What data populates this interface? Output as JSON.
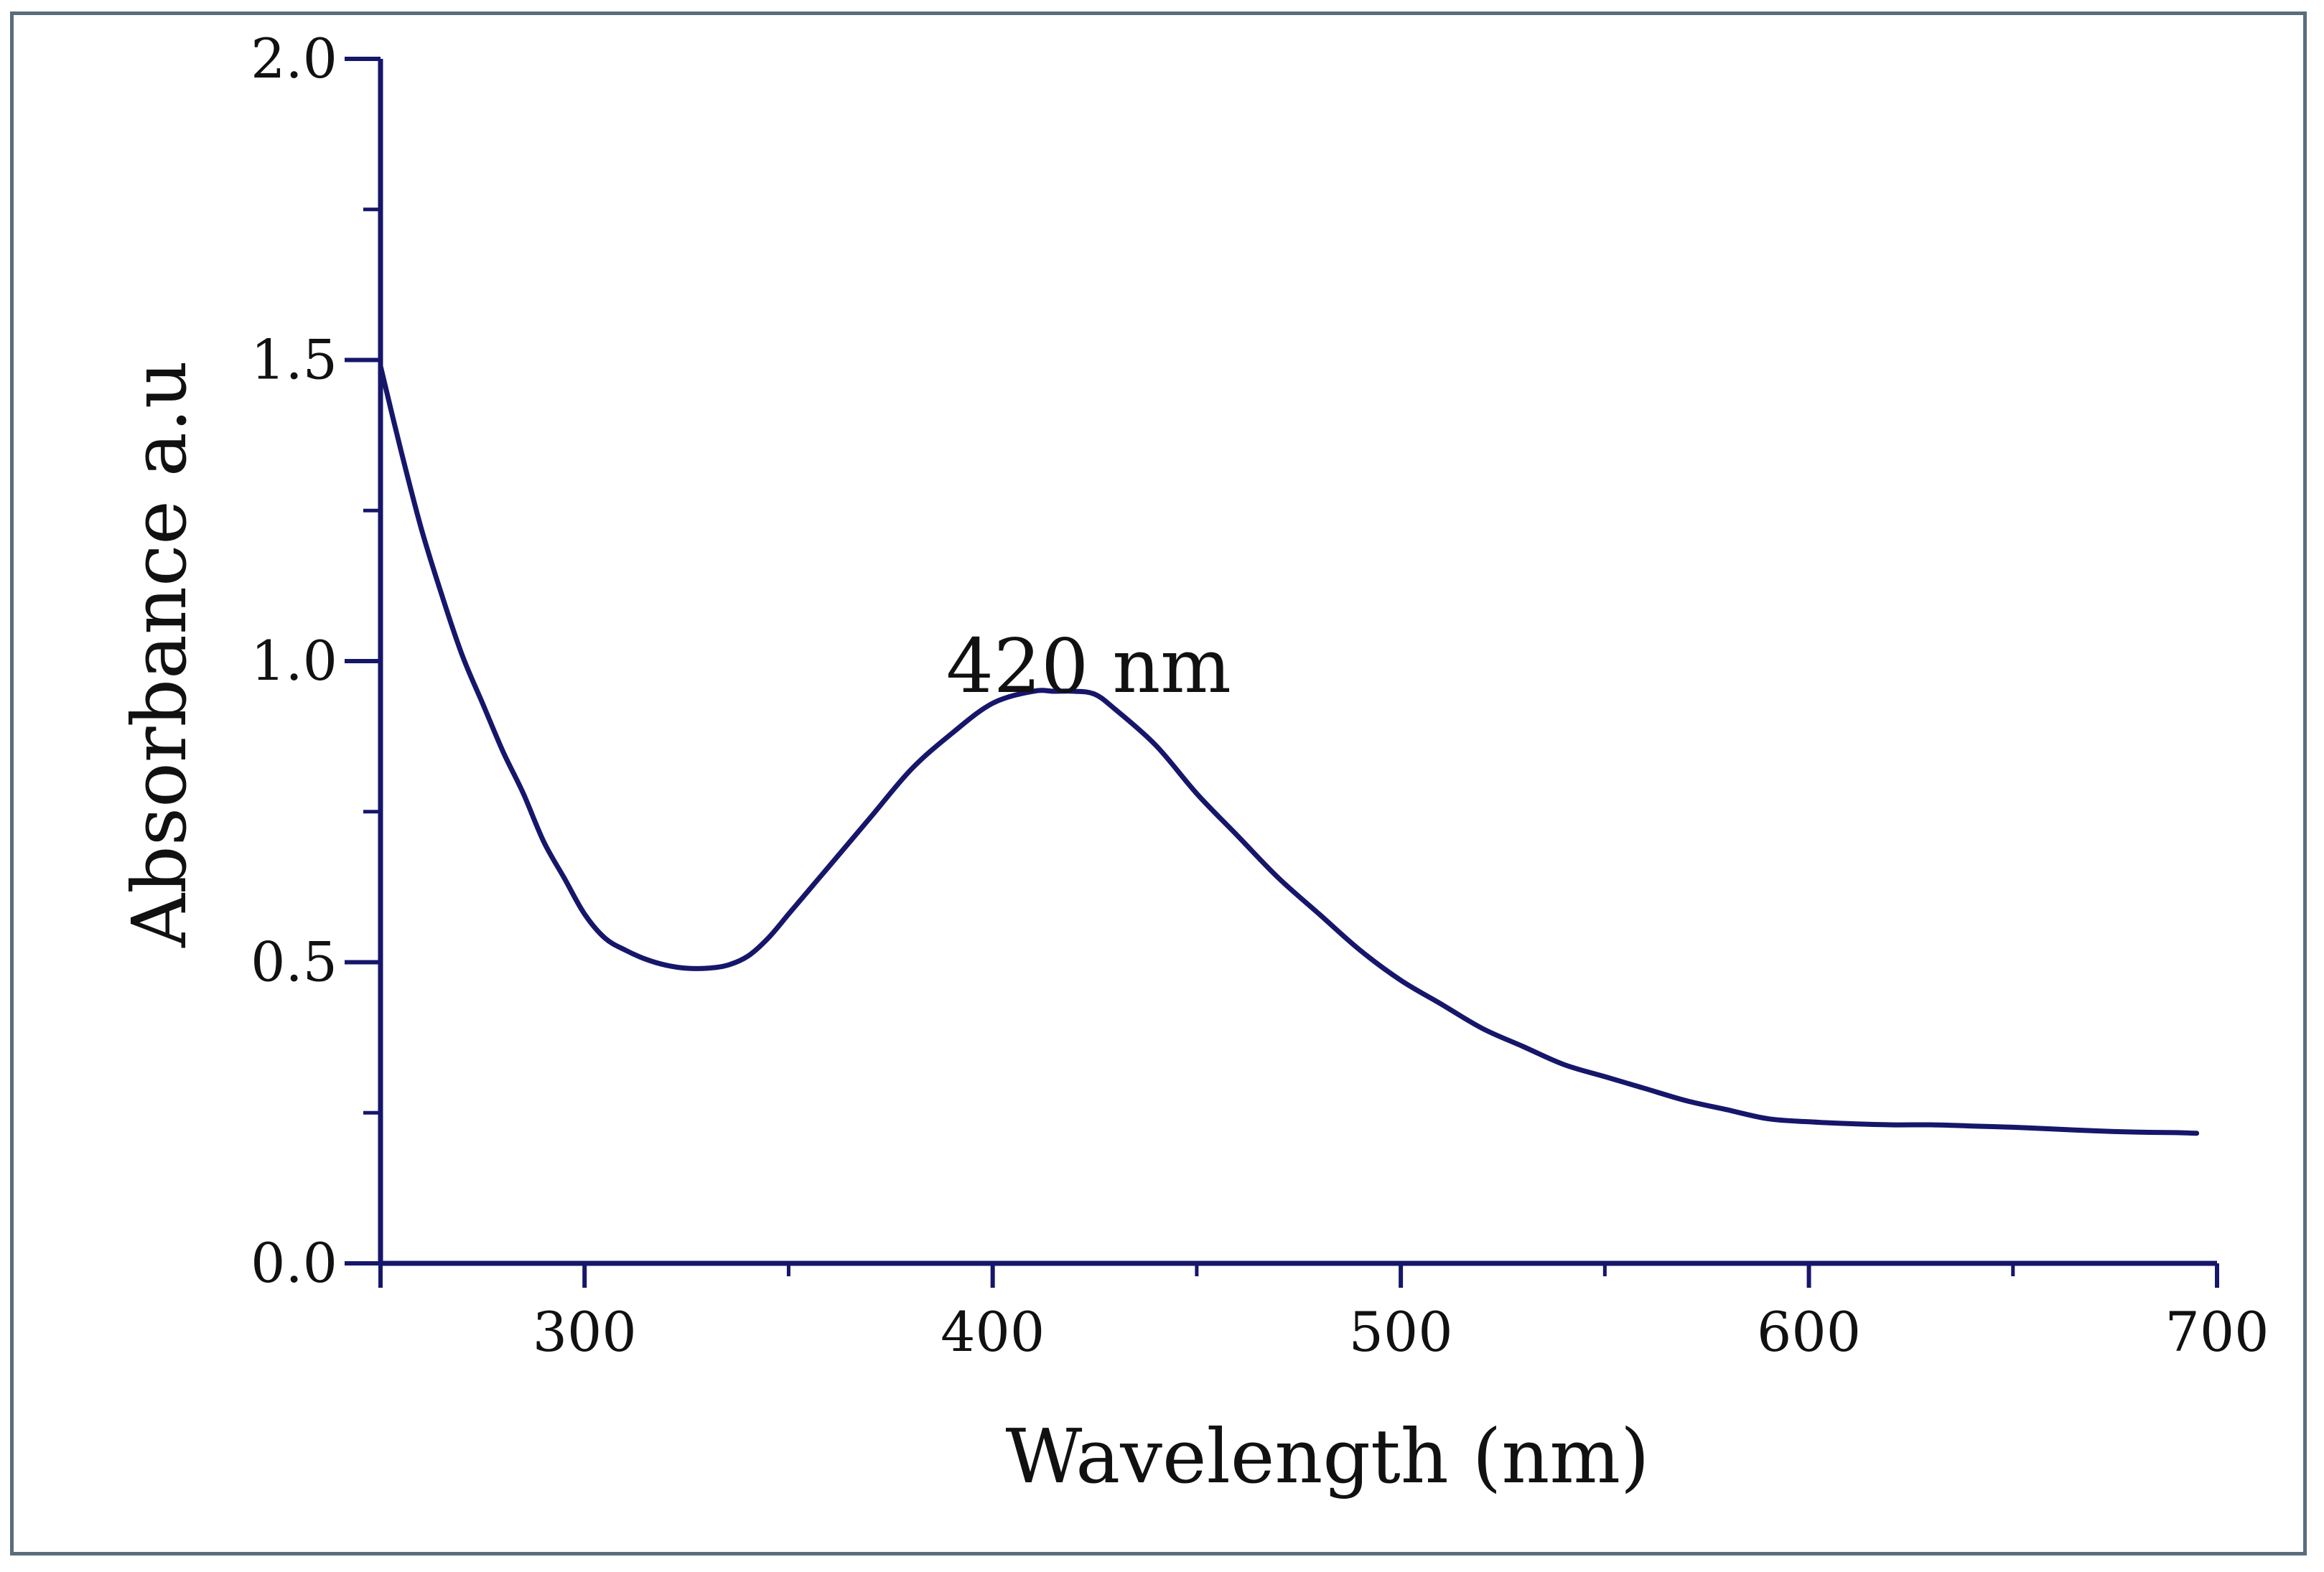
{
  "chart_data": {
    "type": "line",
    "title": "",
    "xlabel": "Wavelength (nm)",
    "ylabel": "Absorbance a.u",
    "xlim": [
      250,
      700
    ],
    "ylim": [
      0.0,
      2.0
    ],
    "xticks": [
      300,
      400,
      500,
      600,
      700
    ],
    "xtick_labels": [
      "300",
      "400",
      "500",
      "600",
      "700"
    ],
    "x_minor_ticks": [
      350,
      450,
      550,
      650
    ],
    "yticks": [
      0.0,
      0.5,
      1.0,
      1.5,
      2.0
    ],
    "ytick_labels": [
      "0.0",
      "0.5",
      "1.0",
      "1.5",
      "2.0"
    ],
    "y_minor_ticks": [
      0.25,
      0.75,
      1.25,
      1.75
    ],
    "grid": false,
    "annotations": [
      {
        "text": "420 nm",
        "x": 420,
        "y": 1.02
      }
    ],
    "series": [
      {
        "name": "Absorbance",
        "color": "#16166b",
        "x": [
          250,
          255,
          260,
          265,
          270,
          275,
          280,
          285,
          290,
          295,
          300,
          305,
          310,
          315,
          320,
          325,
          330,
          335,
          340,
          345,
          350,
          355,
          360,
          370,
          380,
          390,
          400,
          410,
          415,
          420,
          425,
          430,
          440,
          450,
          460,
          470,
          480,
          490,
          500,
          510,
          520,
          530,
          540,
          550,
          560,
          570,
          580,
          590,
          600,
          610,
          620,
          630,
          640,
          650,
          660,
          670,
          680,
          690,
          695
        ],
        "y": [
          1.49,
          1.35,
          1.22,
          1.11,
          1.01,
          0.93,
          0.85,
          0.78,
          0.7,
          0.64,
          0.58,
          0.54,
          0.52,
          0.505,
          0.495,
          0.49,
          0.49,
          0.495,
          0.51,
          0.54,
          0.58,
          0.62,
          0.66,
          0.74,
          0.82,
          0.88,
          0.93,
          0.95,
          0.95,
          0.95,
          0.945,
          0.92,
          0.86,
          0.78,
          0.71,
          0.64,
          0.58,
          0.52,
          0.47,
          0.43,
          0.39,
          0.36,
          0.33,
          0.31,
          0.29,
          0.27,
          0.255,
          0.24,
          0.235,
          0.232,
          0.23,
          0.23,
          0.228,
          0.226,
          0.223,
          0.22,
          0.218,
          0.217,
          0.216
        ]
      }
    ]
  }
}
